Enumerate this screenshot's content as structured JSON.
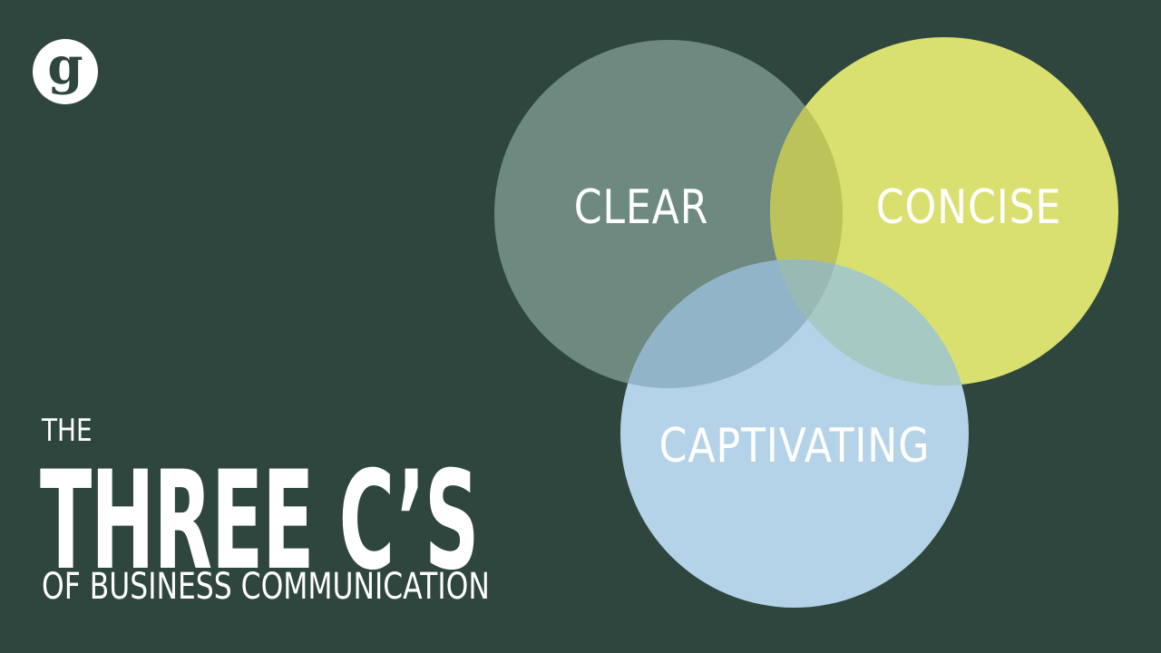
{
  "colors": {
    "background": "#2f463e",
    "logo_bg": "#ffffff",
    "logo_fg": "#2f463e",
    "circle_clear": "#6e8a80",
    "circle_concise": "#d9e06f",
    "circle_captivating": "#b5d3e8",
    "text": "#ffffff"
  },
  "logo": {
    "letter": "g",
    "icon": "brand-g-logo"
  },
  "venn": {
    "circles": [
      {
        "id": "clear",
        "label": "CLEAR"
      },
      {
        "id": "concise",
        "label": "CONCISE"
      },
      {
        "id": "captivating",
        "label": "CAPTIVATING"
      }
    ]
  },
  "title": {
    "pre": "THE",
    "main": "THREE C’S",
    "sub": "OF BUSINESS COMMUNICATION"
  }
}
